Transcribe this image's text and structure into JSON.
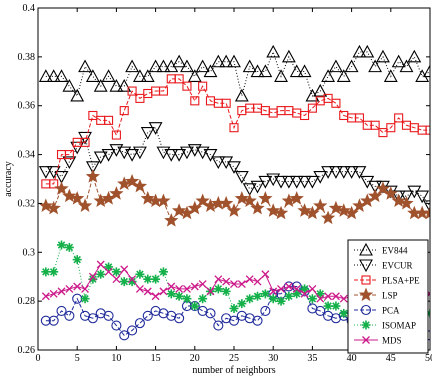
{
  "chart_data": {
    "type": "line",
    "title": "",
    "xlabel": "number of neighbors",
    "ylabel": "accuracy",
    "xlim": [
      0,
      50
    ],
    "ylim": [
      0.26,
      0.4
    ],
    "xticks": [
      0,
      5,
      10,
      15,
      20,
      25,
      30,
      35,
      40,
      45,
      50
    ],
    "yticks": [
      0.26,
      0.28,
      0.3,
      0.32,
      0.34,
      0.36,
      0.38,
      0.4
    ],
    "xtick_labels": [
      "0",
      "5",
      "10",
      "15",
      "20",
      "25",
      "30",
      "35",
      "40",
      "45",
      "50"
    ],
    "ytick_labels": [
      "0.26",
      "0.28",
      "0.3",
      "0.32",
      "0.34",
      "0.36",
      "0.38",
      "0.4"
    ],
    "grid": false,
    "legend_position": "lower-right",
    "x": [
      1,
      2,
      3,
      4,
      5,
      6,
      7,
      8,
      9,
      10,
      11,
      12,
      13,
      14,
      15,
      16,
      17,
      18,
      19,
      20,
      21,
      22,
      23,
      24,
      25,
      26,
      27,
      28,
      29,
      30,
      31,
      32,
      33,
      34,
      35,
      36,
      37,
      38,
      39,
      40,
      41,
      42,
      43,
      44,
      45,
      46,
      47,
      48,
      49,
      50
    ],
    "series": [
      {
        "name": "EV844",
        "color": "#000000",
        "marker": "triangle-up",
        "dash": "1,2",
        "values": [
          0.372,
          0.372,
          0.372,
          0.368,
          0.364,
          0.376,
          0.372,
          0.368,
          0.372,
          0.368,
          0.368,
          0.376,
          0.372,
          0.372,
          0.376,
          0.376,
          0.376,
          0.378,
          0.376,
          0.372,
          0.376,
          0.374,
          0.378,
          0.378,
          0.378,
          0.364,
          0.376,
          0.374,
          0.374,
          0.382,
          0.372,
          0.38,
          0.374,
          0.374,
          0.364,
          0.366,
          0.372,
          0.376,
          0.372,
          0.376,
          0.382,
          0.382,
          0.376,
          0.38,
          0.372,
          0.378,
          0.376,
          0.38,
          0.372,
          0.374
        ]
      },
      {
        "name": "EVCUR",
        "color": "#000000",
        "marker": "triangle-down",
        "dash": "1,2",
        "values": [
          0.333,
          0.333,
          0.331,
          0.337,
          0.343,
          0.347,
          0.335,
          0.339,
          0.34,
          0.342,
          0.341,
          0.34,
          0.341,
          0.349,
          0.351,
          0.341,
          0.34,
          0.34,
          0.341,
          0.342,
          0.341,
          0.34,
          0.337,
          0.337,
          0.335,
          0.331,
          0.326,
          0.327,
          0.329,
          0.33,
          0.329,
          0.329,
          0.329,
          0.329,
          0.329,
          0.331,
          0.333,
          0.333,
          0.333,
          0.333,
          0.333,
          0.329,
          0.327,
          0.327,
          0.325,
          0.323,
          0.323,
          0.325,
          0.323,
          0.319
        ]
      },
      {
        "name": "PLSA+PE",
        "color": "#e8191d",
        "marker": "square",
        "dash": "4,2",
        "values": [
          0.328,
          0.328,
          0.34,
          0.34,
          0.345,
          0.345,
          0.356,
          0.354,
          0.354,
          0.348,
          0.358,
          0.366,
          0.363,
          0.365,
          0.366,
          0.366,
          0.371,
          0.371,
          0.368,
          0.362,
          0.368,
          0.362,
          0.361,
          0.361,
          0.351,
          0.358,
          0.359,
          0.359,
          0.358,
          0.357,
          0.358,
          0.358,
          0.357,
          0.356,
          0.359,
          0.362,
          0.363,
          0.361,
          0.356,
          0.355,
          0.355,
          0.352,
          0.352,
          0.349,
          0.351,
          0.355,
          0.352,
          0.351,
          0.35,
          0.35
        ]
      },
      {
        "name": "LSP",
        "color": "#a0522d",
        "marker": "star",
        "dash": "4,2",
        "values": [
          0.319,
          0.318,
          0.326,
          0.323,
          0.322,
          0.319,
          0.331,
          0.321,
          0.322,
          0.324,
          0.328,
          0.329,
          0.327,
          0.322,
          0.321,
          0.321,
          0.313,
          0.317,
          0.316,
          0.318,
          0.321,
          0.319,
          0.32,
          0.32,
          0.317,
          0.322,
          0.321,
          0.318,
          0.322,
          0.317,
          0.316,
          0.321,
          0.322,
          0.317,
          0.316,
          0.319,
          0.314,
          0.318,
          0.317,
          0.316,
          0.319,
          0.321,
          0.323,
          0.326,
          0.324,
          0.321,
          0.32,
          0.316,
          0.316,
          0.316
        ]
      },
      {
        "name": "PCA",
        "color": "#1f2a9a",
        "marker": "circle",
        "dash": "4,2",
        "values": [
          0.272,
          0.272,
          0.276,
          0.274,
          0.281,
          0.274,
          0.273,
          0.275,
          0.274,
          0.27,
          0.266,
          0.268,
          0.271,
          0.274,
          0.276,
          0.275,
          0.274,
          0.273,
          0.278,
          0.278,
          0.276,
          0.275,
          0.27,
          0.273,
          0.272,
          0.274,
          0.273,
          0.272,
          0.276,
          0.283,
          0.283,
          0.286,
          0.286,
          0.284,
          0.277,
          0.276,
          0.274,
          0.273,
          0.274,
          0.272,
          0.268,
          0.262,
          0.266,
          0.266,
          0.269,
          0.266,
          0.262,
          0.265,
          0.264,
          0.266
        ]
      },
      {
        "name": "ISOMAP",
        "color": "#14b04a",
        "marker": "asterisk",
        "dash": "1,2",
        "values": [
          0.292,
          0.292,
          0.303,
          0.302,
          0.297,
          0.281,
          0.289,
          0.291,
          0.294,
          0.292,
          0.288,
          0.288,
          0.291,
          0.289,
          0.289,
          0.292,
          0.283,
          0.282,
          0.281,
          0.278,
          0.281,
          0.284,
          0.285,
          0.284,
          0.277,
          0.279,
          0.281,
          0.282,
          0.283,
          0.281,
          0.28,
          0.282,
          0.283,
          0.285,
          0.281,
          0.283,
          0.278,
          0.278,
          0.275,
          0.276,
          0.273,
          0.272,
          0.271,
          0.272,
          0.272,
          0.271,
          0.27,
          0.271,
          0.278,
          0.275
        ]
      },
      {
        "name": "MDS",
        "color": "#cc1a8a",
        "marker": "x",
        "dash": "",
        "values": [
          0.282,
          0.283,
          0.284,
          0.285,
          0.286,
          0.285,
          0.29,
          0.295,
          0.292,
          0.289,
          0.293,
          0.289,
          0.285,
          0.284,
          0.282,
          0.284,
          0.286,
          0.285,
          0.285,
          0.286,
          0.287,
          0.284,
          0.289,
          0.288,
          0.287,
          0.287,
          0.289,
          0.288,
          0.291,
          0.284,
          0.285,
          0.286,
          0.285,
          0.283,
          0.285,
          0.281,
          0.282,
          0.282,
          0.281,
          0.282,
          0.279,
          0.281,
          0.279,
          0.279,
          0.278,
          0.278,
          0.279,
          0.279,
          0.282,
          0.283
        ]
      }
    ]
  }
}
